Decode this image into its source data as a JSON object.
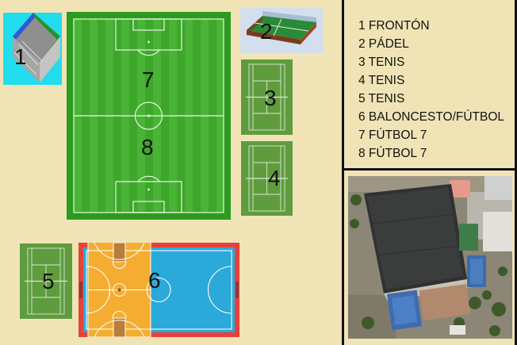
{
  "facilities": [
    {
      "number": "1",
      "name": "FRONTÓN"
    },
    {
      "number": "2",
      "name": "PÁDEL"
    },
    {
      "number": "3",
      "name": "TENIS"
    },
    {
      "number": "4",
      "name": "TENIS"
    },
    {
      "number": "5",
      "name": "TENIS"
    },
    {
      "number": "6",
      "name": "BALONCESTO/FÚTBOL"
    },
    {
      "number": "7",
      "name": "FÚTBOL 7"
    },
    {
      "number": "8",
      "name": "FÚTBOL 7"
    }
  ],
  "legend": [
    "1 FRONTÓN",
    "2 PÁDEL",
    "3 TENIS",
    "4 TENIS",
    "5 TENIS",
    "6 BALONCESTO/FÚTBOL",
    "7 FÚTBOL 7",
    "8 FÚTBOL 7"
  ],
  "colors": {
    "background": "#f0e4b6",
    "divider": "#111111",
    "grass_dark": "#3fa92c",
    "grass_light": "#49b434",
    "tennis_grass": "#5f9c3e",
    "basketball_floor": "#f4ad31",
    "futsal_floor": "#2aa9da",
    "court_border": "#e8413a",
    "fronton_bg": "#22ddee",
    "padel_bg": "#d3dfee"
  }
}
